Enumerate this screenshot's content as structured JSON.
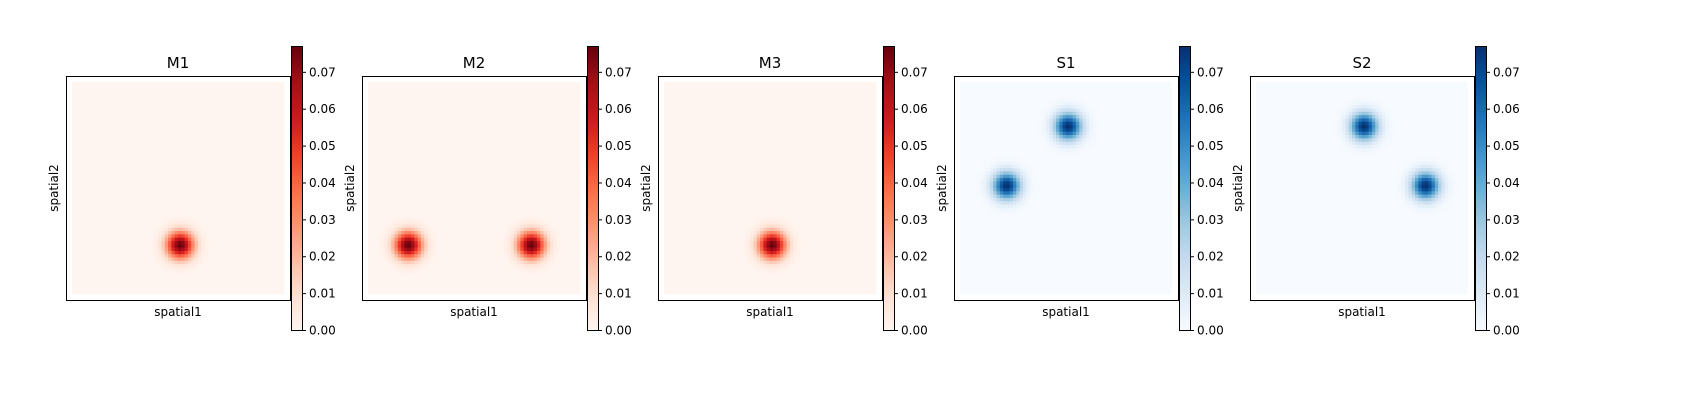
{
  "figure": {
    "colorbar_ticks": [
      "0.00",
      "0.01",
      "0.02",
      "0.03",
      "0.04",
      "0.05",
      "0.06",
      "0.07"
    ],
    "colormaps": {
      "Reds": [
        "#fff5f0",
        "#fee0d2",
        "#fcbba1",
        "#fc9272",
        "#fb6a4a",
        "#ef3b2c",
        "#cb181d",
        "#a50f15",
        "#67000d"
      ],
      "Blues": [
        "#f7fbff",
        "#deebf7",
        "#c6dbef",
        "#9ecae1",
        "#6baed6",
        "#4292c6",
        "#2171b5",
        "#08519c",
        "#08306b"
      ]
    }
  },
  "chart_data": [
    {
      "type": "heatmap",
      "title": "M1",
      "xlabel": "spatial1",
      "ylabel": "spatial2",
      "colormap": "Reds",
      "color_range": [
        0,
        0.077
      ],
      "domain": [
        0,
        1
      ],
      "sigma": 0.045,
      "blobs": [
        {
          "x": 0.51,
          "y": 0.23,
          "peak": 0.077
        }
      ]
    },
    {
      "type": "heatmap",
      "title": "M2",
      "xlabel": "spatial1",
      "ylabel": "spatial2",
      "colormap": "Reds",
      "color_range": [
        0,
        0.077
      ],
      "domain": [
        0,
        1
      ],
      "sigma": 0.045,
      "blobs": [
        {
          "x": 0.19,
          "y": 0.23,
          "peak": 0.077
        },
        {
          "x": 0.77,
          "y": 0.23,
          "peak": 0.077
        }
      ]
    },
    {
      "type": "heatmap",
      "title": "M3",
      "xlabel": "spatial1",
      "ylabel": "spatial2",
      "colormap": "Reds",
      "color_range": [
        0,
        0.077
      ],
      "domain": [
        0,
        1
      ],
      "sigma": 0.045,
      "blobs": [
        {
          "x": 0.51,
          "y": 0.23,
          "peak": 0.077
        }
      ]
    },
    {
      "type": "heatmap",
      "title": "S1",
      "xlabel": "spatial1",
      "ylabel": "spatial2",
      "colormap": "Blues",
      "color_range": [
        0,
        0.077
      ],
      "domain": [
        0,
        1
      ],
      "sigma": 0.045,
      "blobs": [
        {
          "x": 0.22,
          "y": 0.51,
          "peak": 0.077
        },
        {
          "x": 0.51,
          "y": 0.79,
          "peak": 0.077
        }
      ]
    },
    {
      "type": "heatmap",
      "title": "S2",
      "xlabel": "spatial1",
      "ylabel": "spatial2",
      "colormap": "Blues",
      "color_range": [
        0,
        0.077
      ],
      "domain": [
        0,
        1
      ],
      "sigma": 0.045,
      "blobs": [
        {
          "x": 0.51,
          "y": 0.79,
          "peak": 0.077
        },
        {
          "x": 0.8,
          "y": 0.51,
          "peak": 0.077
        }
      ]
    }
  ]
}
